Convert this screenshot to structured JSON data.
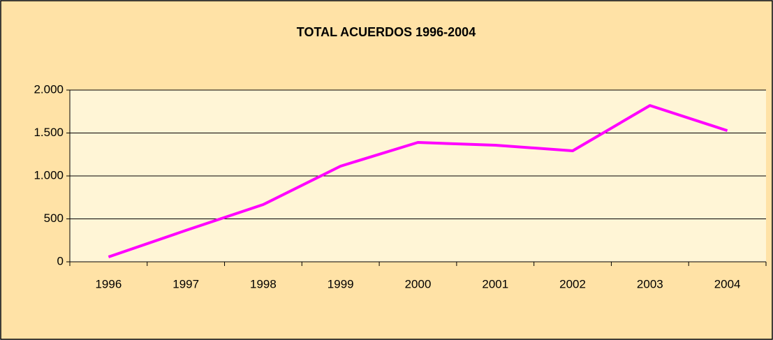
{
  "chart_data": {
    "type": "line",
    "title": "TOTAL ACUERDOS 1996-2004",
    "categories": [
      "1996",
      "1997",
      "1998",
      "1999",
      "2000",
      "2001",
      "2002",
      "2003",
      "2004"
    ],
    "series": [
      {
        "name": "Total acuerdos",
        "color": "#ff00ff",
        "values": [
          57,
          366,
          667,
          1114,
          1390,
          1358,
          1293,
          1820,
          1528
        ]
      }
    ],
    "ylim": [
      0,
      2000
    ],
    "yticks": [
      0,
      500,
      {
        "value": 1000,
        "label": "1.000"
      },
      {
        "value": 1500,
        "label": "1.500"
      },
      {
        "value": 2000,
        "label": "2.000"
      }
    ],
    "grid": true
  }
}
